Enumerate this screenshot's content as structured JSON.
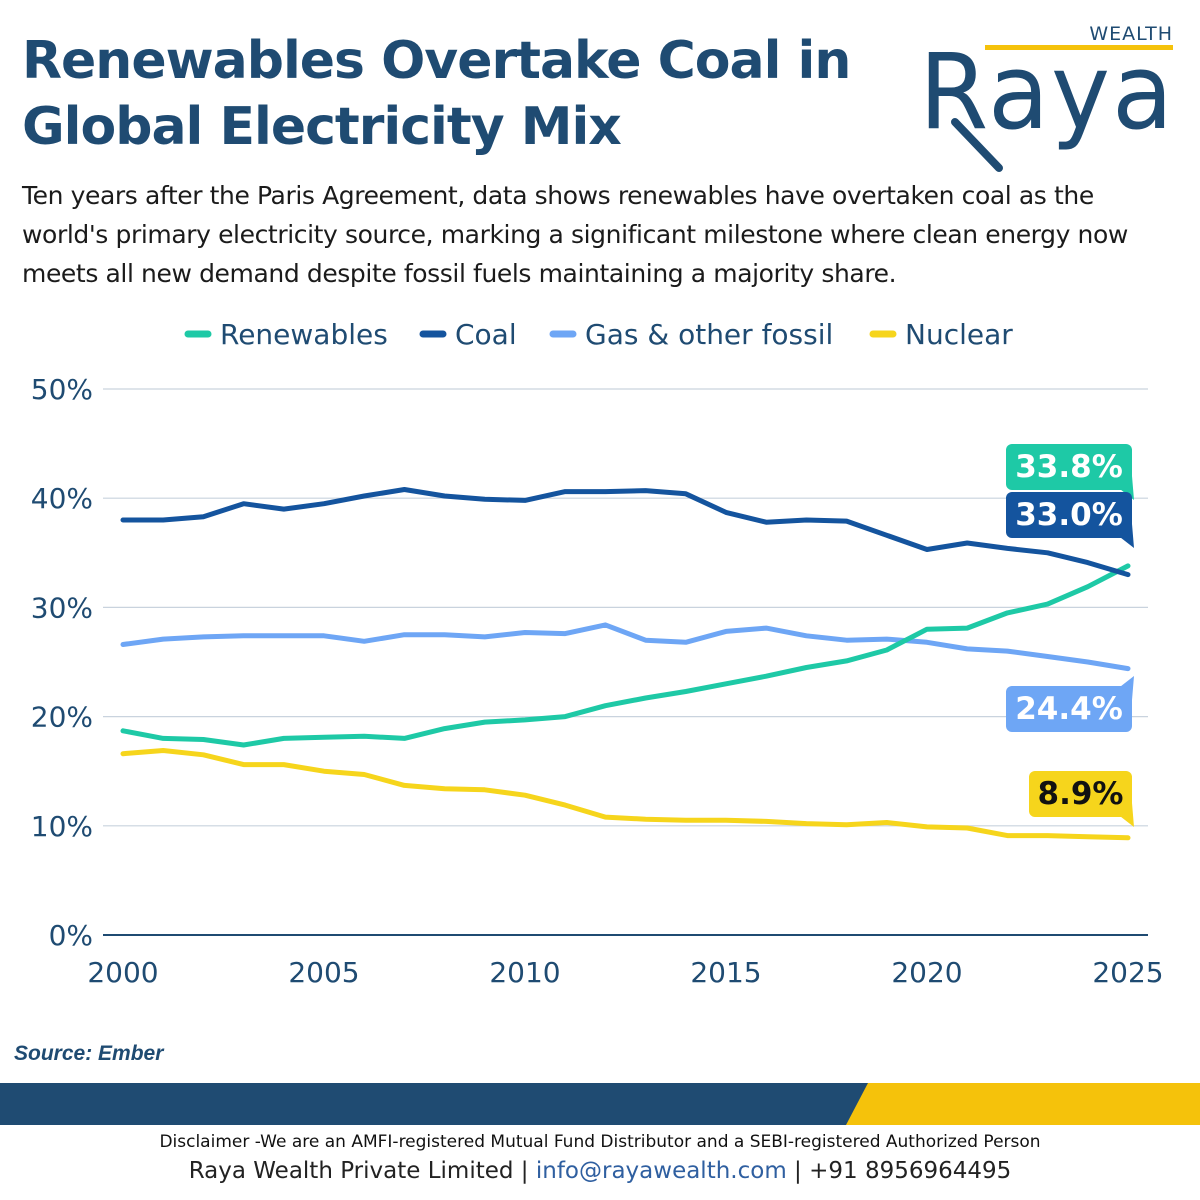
{
  "header": {
    "title_line1": "Renewables Overtake Coal in",
    "title_line2": "Global Electricity Mix",
    "subtitle": "Ten years after the Paris Agreement, data shows renewables have overtaken coal as the world's primary electricity source, marking a significant milestone where clean energy now meets all new demand despite fossil fuels maintaining a majority share."
  },
  "logo": {
    "tagline": "WEALTH",
    "wordmark": "Raya"
  },
  "colors": {
    "title": "#1f4b72",
    "Renewables": "#1ec9a6",
    "Coal": "#14549e",
    "Gas & other fossil": "#6ea6f5",
    "Nuclear": "#f6d51c",
    "axis": "#1f4b72",
    "gold": "#f5c20b"
  },
  "chart_data": {
    "type": "line",
    "title": "",
    "xlabel": "",
    "ylabel": "",
    "x": [
      2000,
      2001,
      2002,
      2003,
      2004,
      2005,
      2006,
      2007,
      2008,
      2009,
      2010,
      2011,
      2012,
      2013,
      2014,
      2015,
      2016,
      2017,
      2018,
      2019,
      2020,
      2021,
      2022,
      2023,
      2024,
      2025
    ],
    "xticks": [
      "2000",
      "2005",
      "2010",
      "2015",
      "2020",
      "2025"
    ],
    "yticks": [
      "0%",
      "10%",
      "20%",
      "30%",
      "40%",
      "50%"
    ],
    "ylim": [
      0,
      50
    ],
    "grid": true,
    "legend_position": "top",
    "series": [
      {
        "name": "Renewables",
        "values": [
          18.7,
          18.0,
          17.9,
          17.4,
          18.0,
          18.1,
          18.2,
          18.0,
          18.9,
          19.5,
          19.7,
          20.0,
          21.0,
          21.7,
          22.3,
          23.0,
          23.7,
          24.5,
          25.1,
          26.1,
          28.0,
          28.1,
          29.5,
          30.3,
          31.9,
          33.8
        ],
        "end_label": "33.8%"
      },
      {
        "name": "Coal",
        "values": [
          38.0,
          38.0,
          38.3,
          39.5,
          39.0,
          39.5,
          40.2,
          40.8,
          40.2,
          39.9,
          39.8,
          40.6,
          40.6,
          40.7,
          40.4,
          38.7,
          37.8,
          38.0,
          37.9,
          36.6,
          35.3,
          35.9,
          35.4,
          35.0,
          34.1,
          33.0
        ],
        "end_label": "33.0%"
      },
      {
        "name": "Gas & other fossil",
        "values": [
          26.6,
          27.1,
          27.3,
          27.4,
          27.4,
          27.4,
          26.9,
          27.5,
          27.5,
          27.3,
          27.7,
          27.6,
          28.4,
          27.0,
          26.8,
          27.8,
          28.1,
          27.4,
          27.0,
          27.1,
          26.8,
          26.2,
          26.0,
          25.5,
          25.0,
          24.4
        ],
        "end_label": "24.4%"
      },
      {
        "name": "Nuclear",
        "values": [
          16.6,
          16.9,
          16.5,
          15.6,
          15.6,
          15.0,
          14.7,
          13.7,
          13.4,
          13.3,
          12.8,
          11.9,
          10.8,
          10.6,
          10.5,
          10.5,
          10.4,
          10.2,
          10.1,
          10.3,
          9.9,
          9.8,
          9.1,
          9.1,
          9.0,
          8.9
        ],
        "end_label": "8.9%"
      }
    ]
  },
  "source": "Source: Ember",
  "footer": {
    "disclaimer": "Disclaimer -We are an AMFI-registered Mutual Fund Distributor and a SEBI-registered Authorized Person",
    "company": "Raya Wealth Private Limited",
    "sep1": " | ",
    "email": "info@rayawealth.com",
    "sep2": " | ",
    "phone": "+91 8956964495"
  }
}
